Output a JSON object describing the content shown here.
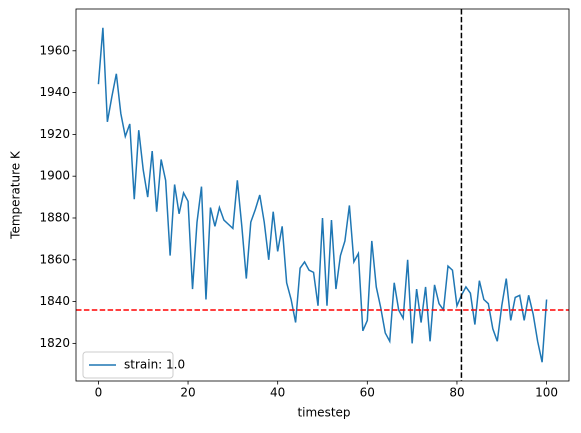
{
  "chart_data": {
    "type": "line",
    "xlabel": "timestep",
    "ylabel": "Temperature K",
    "x": [
      0,
      1,
      2,
      3,
      4,
      5,
      6,
      7,
      8,
      9,
      10,
      11,
      12,
      13,
      14,
      15,
      16,
      17,
      18,
      19,
      20,
      21,
      22,
      23,
      24,
      25,
      26,
      27,
      28,
      29,
      30,
      31,
      32,
      33,
      34,
      35,
      36,
      37,
      38,
      39,
      40,
      41,
      42,
      43,
      44,
      45,
      46,
      47,
      48,
      49,
      50,
      51,
      52,
      53,
      54,
      55,
      56,
      57,
      58,
      59,
      60,
      61,
      62,
      63,
      64,
      65,
      66,
      67,
      68,
      69,
      70,
      71,
      72,
      73,
      74,
      75,
      76,
      77,
      78,
      79,
      80,
      81,
      82,
      83,
      84,
      85,
      86,
      87,
      88,
      89,
      90,
      91,
      92,
      93,
      94,
      95,
      96,
      97,
      98,
      99,
      100
    ],
    "series": [
      {
        "name": "strain: 1.0",
        "color": "#1f77b4",
        "values": [
          1944,
          1971,
          1926,
          1938,
          1949,
          1930,
          1919,
          1925,
          1889,
          1922,
          1903,
          1890,
          1912,
          1883,
          1908,
          1898,
          1862,
          1896,
          1882,
          1892,
          1888,
          1846,
          1878,
          1895,
          1841,
          1885,
          1876,
          1885,
          1879,
          1877,
          1875,
          1898,
          1876,
          1851,
          1878,
          1884,
          1891,
          1878,
          1860,
          1883,
          1864,
          1876,
          1849,
          1841,
          1830,
          1856,
          1859,
          1855,
          1854,
          1838,
          1880,
          1838,
          1879,
          1846,
          1862,
          1869,
          1886,
          1859,
          1863,
          1826,
          1831,
          1869,
          1847,
          1837,
          1825,
          1821,
          1849,
          1836,
          1832,
          1860,
          1820,
          1846,
          1830,
          1847,
          1821,
          1848,
          1839,
          1836,
          1857,
          1855,
          1838,
          1843,
          1847,
          1844,
          1829,
          1850,
          1841,
          1839,
          1827,
          1821,
          1838,
          1851,
          1831,
          1842,
          1843,
          1831,
          1843,
          1834,
          1821,
          1811,
          1841
        ]
      }
    ],
    "hline": {
      "value": 1836,
      "color": "#ff0000"
    },
    "vline": {
      "value": 81,
      "color": "#000000"
    },
    "xlim": [
      -5,
      105
    ],
    "xticks": [
      0,
      20,
      40,
      60,
      80,
      100
    ],
    "ylim": [
      1802,
      1980
    ],
    "yticks": [
      1820,
      1840,
      1860,
      1880,
      1900,
      1920,
      1940,
      1960
    ],
    "legend": "lower left"
  }
}
